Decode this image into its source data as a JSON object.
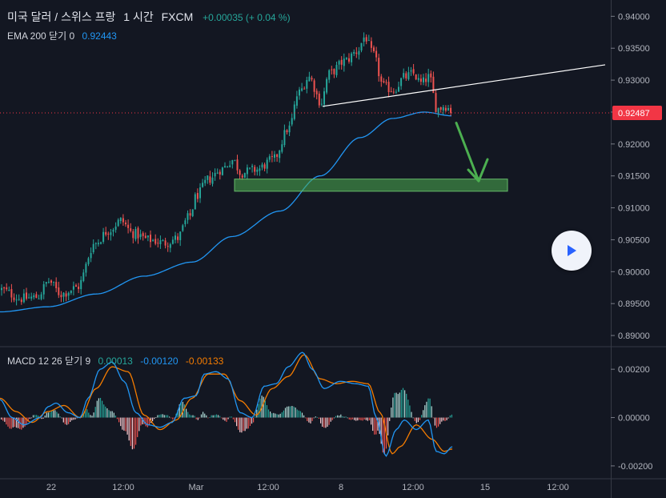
{
  "header": {
    "symbol": "미국 달러 / 스위스 프랑",
    "interval": "1 시간",
    "exchange": "FXCM",
    "change": "+0.00035 (+ 0.04 %)"
  },
  "ema": {
    "label": "EMA 200 닫기 0",
    "value": "0.92443"
  },
  "macd": {
    "label": "MACD 12 26 닫기 9",
    "hist_value": "0.00013",
    "macd_value": "-0.00120",
    "signal_value": "-0.00133"
  },
  "price_badge": "0.92487",
  "colors": {
    "background": "#131722",
    "up": "#26a69a",
    "down": "#ef5350",
    "ema": "#2196f3",
    "macd_line": "#2196f3",
    "signal_line": "#f57c00",
    "zone": "#4caf50",
    "arrow": "#4caf50",
    "trendline": "#ffffff",
    "badge": "#f23645"
  },
  "play_icon": "play-icon",
  "chart_data": [
    {
      "type": "candlestick",
      "title": "미국 달러 / 스위스 프랑 · 1 시간 · FXCM",
      "x_ticks": [
        "22",
        "12:00",
        "Mar",
        "12:00",
        "8",
        "12:00",
        "15",
        "12:00"
      ],
      "y_ticks": [
        "0.94000",
        "0.93500",
        "0.93000",
        "0.92500",
        "0.92000",
        "0.91500",
        "0.91000",
        "0.90500",
        "0.90000",
        "0.89500",
        "0.89000"
      ],
      "ylim": [
        0.8885,
        0.9418
      ],
      "last_price": 0.92487,
      "close_anchors": [
        [
          0,
          0.8972
        ],
        [
          25,
          0.8958
        ],
        [
          45,
          0.896
        ],
        [
          60,
          0.8985
        ],
        [
          75,
          0.8965
        ],
        [
          95,
          0.8975
        ],
        [
          118,
          0.9045
        ],
        [
          135,
          0.9065
        ],
        [
          150,
          0.908
        ],
        [
          165,
          0.906
        ],
        [
          185,
          0.905
        ],
        [
          205,
          0.9045
        ],
        [
          220,
          0.9052
        ],
        [
          235,
          0.9085
        ],
        [
          245,
          0.912
        ],
        [
          260,
          0.9145
        ],
        [
          275,
          0.916
        ],
        [
          290,
          0.9175
        ],
        [
          300,
          0.9155
        ],
        [
          320,
          0.916
        ],
        [
          340,
          0.9175
        ],
        [
          360,
          0.9225
        ],
        [
          372,
          0.928
        ],
        [
          385,
          0.9305
        ],
        [
          400,
          0.9265
        ],
        [
          410,
          0.931
        ],
        [
          430,
          0.933
        ],
        [
          445,
          0.9345
        ],
        [
          455,
          0.9368
        ],
        [
          465,
          0.934
        ],
        [
          478,
          0.929
        ],
        [
          490,
          0.9285
        ],
        [
          505,
          0.9305
        ],
        [
          515,
          0.931
        ],
        [
          525,
          0.9295
        ],
        [
          535,
          0.9305
        ],
        [
          545,
          0.9255
        ],
        [
          555,
          0.926
        ],
        [
          565,
          0.9249
        ]
      ],
      "ema_200_anchors": [
        [
          0,
          0.8937
        ],
        [
          60,
          0.8945
        ],
        [
          120,
          0.8965
        ],
        [
          180,
          0.8993
        ],
        [
          240,
          0.9015
        ],
        [
          290,
          0.9055
        ],
        [
          350,
          0.9095
        ],
        [
          400,
          0.915
        ],
        [
          450,
          0.921
        ],
        [
          490,
          0.924
        ],
        [
          530,
          0.925
        ],
        [
          565,
          0.9244
        ]
      ],
      "trendline": {
        "start": [
          403,
          0.9259
        ],
        "end": [
          756,
          0.9324
        ]
      },
      "zone": {
        "x_start": 293,
        "x_end": 634,
        "y_top": 0.9145,
        "y_bottom": 0.9126
      },
      "arrow": {
        "start": [
          570,
          0.9233
        ],
        "end": [
          598,
          0.9142
        ]
      }
    },
    {
      "type": "macd",
      "title": "MACD 12 26 닫기 9",
      "y_ticks": [
        "0.00200",
        "0.00000",
        "-0.00200"
      ],
      "ylim": [
        -0.0025,
        0.0029
      ],
      "macd_anchors": [
        [
          0,
          0.00075
        ],
        [
          15,
          0.0
        ],
        [
          30,
          -0.0003
        ],
        [
          50,
          0.0
        ],
        [
          60,
          0.00045
        ],
        [
          70,
          0.0006
        ],
        [
          85,
          0.0002
        ],
        [
          100,
          0.0
        ],
        [
          110,
          0.0008
        ],
        [
          125,
          0.002
        ],
        [
          140,
          0.0023
        ],
        [
          155,
          0.0015
        ],
        [
          170,
          0.0002
        ],
        [
          185,
          -0.0003
        ],
        [
          200,
          -0.0004
        ],
        [
          215,
          -0.0002
        ],
        [
          230,
          0.0008
        ],
        [
          245,
          0.0009
        ],
        [
          255,
          0.0018
        ],
        [
          270,
          0.0019
        ],
        [
          285,
          0.0016
        ],
        [
          300,
          0.0002
        ],
        [
          315,
          0.0
        ],
        [
          330,
          0.0013
        ],
        [
          345,
          0.0014
        ],
        [
          360,
          0.0021
        ],
        [
          378,
          0.0027
        ],
        [
          390,
          0.002
        ],
        [
          405,
          0.0012
        ],
        [
          425,
          0.0015
        ],
        [
          445,
          0.0014
        ],
        [
          460,
          0.0013
        ],
        [
          470,
          0.0
        ],
        [
          482,
          -0.0016
        ],
        [
          495,
          -0.0005
        ],
        [
          505,
          -0.0001
        ],
        [
          520,
          -0.0005
        ],
        [
          535,
          -0.0001
        ],
        [
          545,
          -0.0014
        ],
        [
          555,
          -0.0015
        ],
        [
          565,
          -0.0012
        ]
      ],
      "signal_anchors": [
        [
          0,
          0.0008
        ],
        [
          20,
          0.00025
        ],
        [
          40,
          -0.0002
        ],
        [
          60,
          0.00025
        ],
        [
          80,
          0.0005
        ],
        [
          100,
          0.0
        ],
        [
          120,
          0.0012
        ],
        [
          140,
          0.0021
        ],
        [
          160,
          0.0019
        ],
        [
          180,
          0.0001
        ],
        [
          200,
          -0.0005
        ],
        [
          220,
          -0.0001
        ],
        [
          240,
          0.0008
        ],
        [
          260,
          0.0018
        ],
        [
          280,
          0.0018
        ],
        [
          300,
          0.0007
        ],
        [
          320,
          0.0001
        ],
        [
          340,
          0.0012
        ],
        [
          360,
          0.0017
        ],
        [
          380,
          0.0026
        ],
        [
          400,
          0.0016
        ],
        [
          420,
          0.0014
        ],
        [
          440,
          0.0015
        ],
        [
          460,
          0.0014
        ],
        [
          475,
          0.0002
        ],
        [
          490,
          -0.0015
        ],
        [
          500,
          -0.0012
        ],
        [
          520,
          -0.0003
        ],
        [
          540,
          -0.0009
        ],
        [
          555,
          -0.0014
        ],
        [
          565,
          -0.0013
        ]
      ]
    }
  ]
}
